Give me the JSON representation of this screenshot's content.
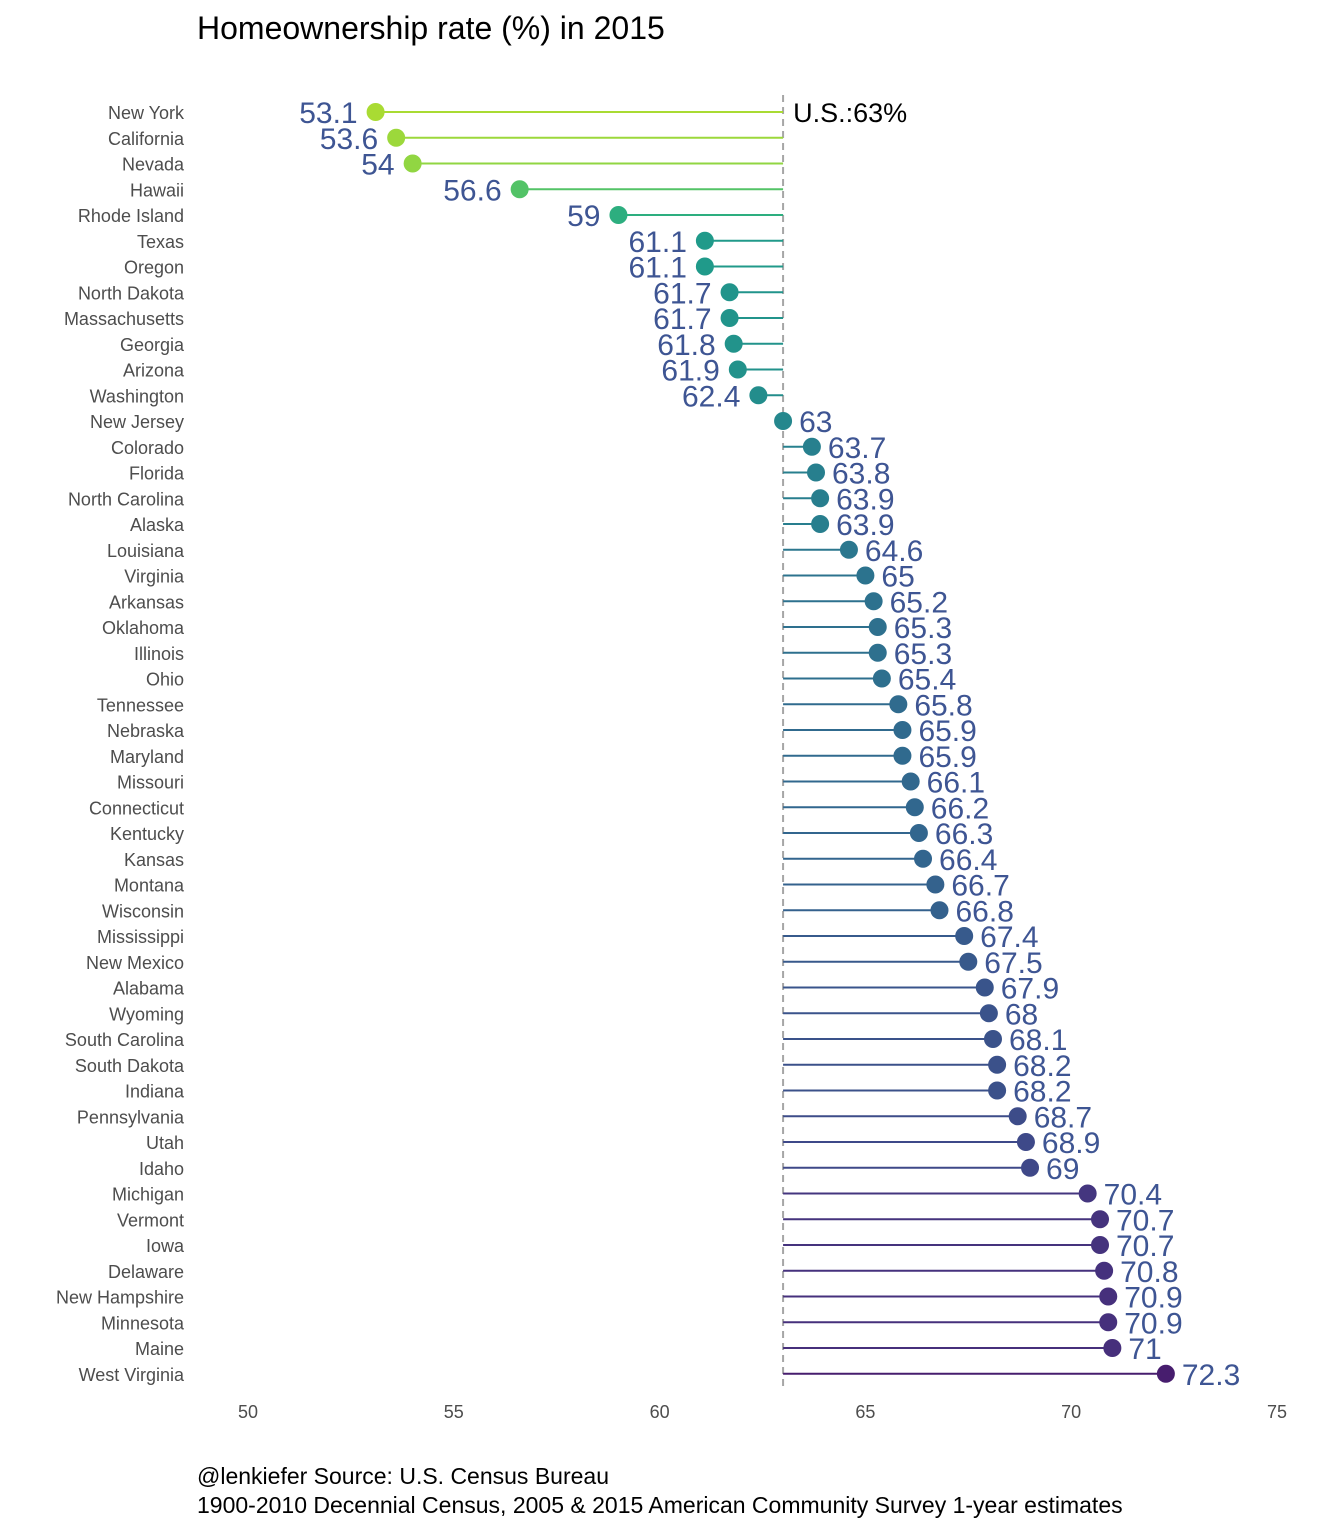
{
  "chart_data": {
    "type": "lollipop",
    "title": "Homeownership rate (%) in 2015",
    "xlabel": "",
    "ylabel": "",
    "xlim": [
      50,
      75
    ],
    "x_ticks": [
      50,
      55,
      60,
      65,
      70,
      75
    ],
    "reference": {
      "value": 63,
      "label": "U.S.:63%"
    },
    "grid": false,
    "colormap": "viridis (reversed: low = yellow-green, high = dark purple)",
    "label_color": "#3e5593",
    "categories": [
      "New York",
      "California",
      "Nevada",
      "Hawaii",
      "Rhode Island",
      "Texas",
      "Oregon",
      "North Dakota",
      "Massachusetts",
      "Georgia",
      "Arizona",
      "Washington",
      "New Jersey",
      "Colorado",
      "Florida",
      "North Carolina",
      "Alaska",
      "Louisiana",
      "Virginia",
      "Arkansas",
      "Oklahoma",
      "Illinois",
      "Ohio",
      "Tennessee",
      "Nebraska",
      "Maryland",
      "Missouri",
      "Connecticut",
      "Kentucky",
      "Kansas",
      "Montana",
      "Wisconsin",
      "Mississippi",
      "New Mexico",
      "Alabama",
      "Wyoming",
      "South Carolina",
      "South Dakota",
      "Indiana",
      "Pennsylvania",
      "Utah",
      "Idaho",
      "Michigan",
      "Vermont",
      "Iowa",
      "Delaware",
      "New Hampshire",
      "Minnesota",
      "Maine",
      "West Virginia"
    ],
    "values": [
      53.1,
      53.6,
      54,
      56.6,
      59,
      61.1,
      61.1,
      61.7,
      61.7,
      61.8,
      61.9,
      62.4,
      63,
      63.7,
      63.8,
      63.9,
      63.9,
      64.6,
      65,
      65.2,
      65.3,
      65.3,
      65.4,
      65.8,
      65.9,
      65.9,
      66.1,
      66.2,
      66.3,
      66.4,
      66.7,
      66.8,
      67.4,
      67.5,
      67.9,
      68,
      68.1,
      68.2,
      68.2,
      68.7,
      68.9,
      69,
      70.4,
      70.7,
      70.7,
      70.8,
      70.9,
      70.9,
      71,
      72.3
    ]
  },
  "caption": {
    "line1": "@lenkiefer Source: U.S. Census Bureau",
    "line2": "1900-2010 Decennial Census, 2005 & 2015 American Community Survey 1-year estimates"
  }
}
